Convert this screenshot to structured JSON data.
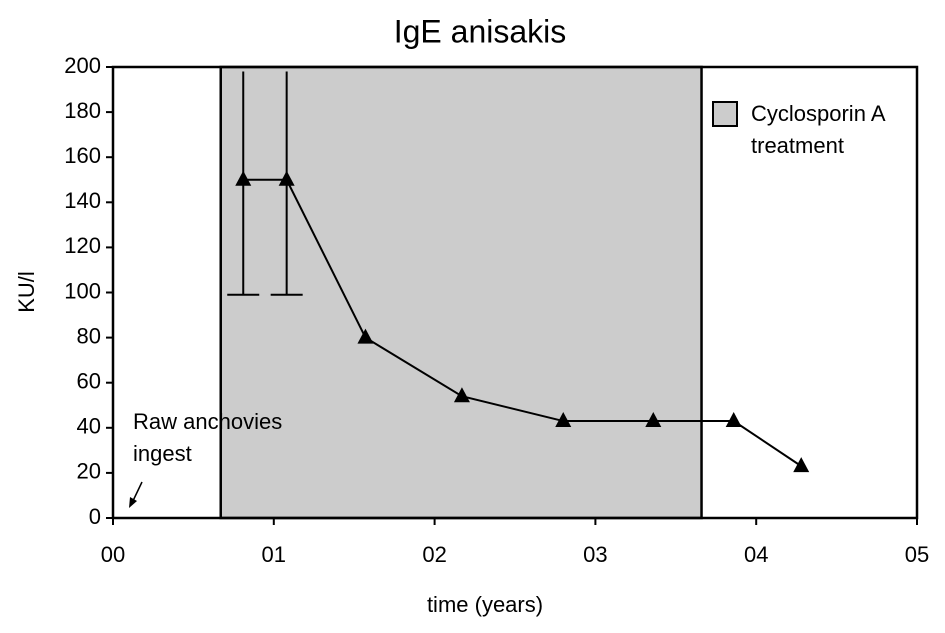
{
  "chart_data": {
    "type": "line",
    "title": "IgE anisakis",
    "xlabel": "time (years)",
    "ylabel": "KU/l",
    "x": [
      0.81,
      1.08,
      1.57,
      2.17,
      2.8,
      3.36,
      3.86,
      4.28
    ],
    "series": [
      {
        "name": "IgE",
        "color": "#000000",
        "marker": "triangle",
        "values": [
          150,
          150,
          80,
          54,
          43,
          43,
          43,
          23
        ],
        "error_upper": [
          198,
          198,
          null,
          null,
          null,
          null,
          null,
          null
        ],
        "error_lower": [
          99,
          99,
          null,
          null,
          null,
          null,
          null,
          null
        ]
      }
    ],
    "shaded_region": {
      "name": "Cyclosporin A treatment",
      "xlim": [
        0.67,
        3.66
      ],
      "color": "#cccccc"
    },
    "annotation": "Raw anchovies ingest",
    "xlim": [
      0,
      5
    ],
    "ylim": [
      0,
      200
    ],
    "xticks": [
      {
        "value": 0,
        "label": "00"
      },
      {
        "value": 1,
        "label": "01"
      },
      {
        "value": 2,
        "label": "02"
      },
      {
        "value": 3,
        "label": "03"
      },
      {
        "value": 4,
        "label": "04"
      },
      {
        "value": 5,
        "label": "05"
      }
    ],
    "yticks": [
      0,
      20,
      40,
      60,
      80,
      100,
      120,
      140,
      160,
      180,
      200
    ],
    "grid": false,
    "legend": "upper right"
  }
}
